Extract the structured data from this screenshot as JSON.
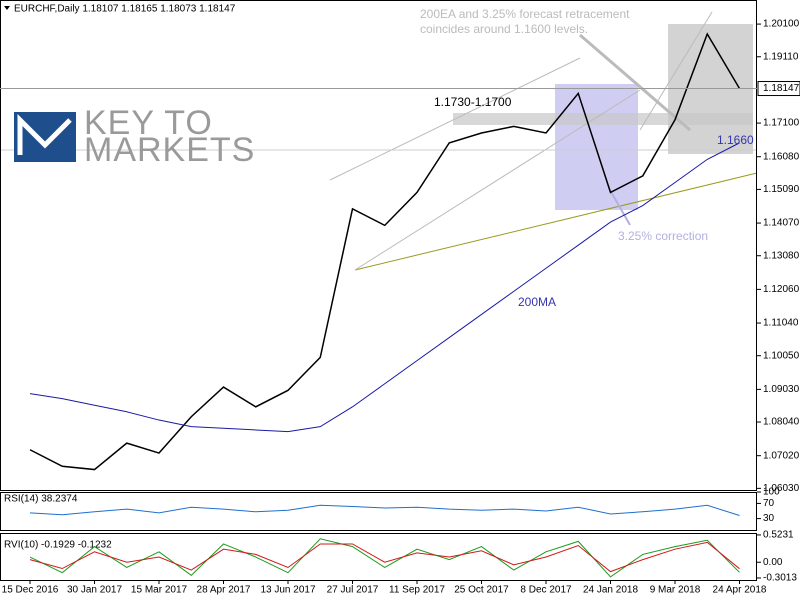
{
  "header": "EURCHF,Daily  1.18107 1.18165 1.18073 1.18147",
  "logo": [
    "KEY TO",
    "MARKETS"
  ],
  "chart_data": [
    {
      "type": "line",
      "title": "EURCHF,Daily",
      "last_price": 1.18147,
      "categories": [
        "15 Dec 2016",
        null,
        "30 Jan 2017",
        null,
        "15 Mar 2017",
        null,
        "28 Apr 2017",
        null,
        "13 Jun 2017",
        null,
        "27 Jul 2017",
        null,
        "11 Sep 2017",
        null,
        "25 Oct 2017",
        null,
        "8 Dec 2017",
        null,
        "24 Jan 2018",
        null,
        "9 Mar 2018",
        null,
        "24 Apr 2018"
      ],
      "series": [
        {
          "name": "EURCHF",
          "color": "#000000",
          "values": [
            1.072,
            1.067,
            1.066,
            1.074,
            1.071,
            1.082,
            1.091,
            1.085,
            1.09,
            1.1,
            1.145,
            1.14,
            1.15,
            1.165,
            1.168,
            1.17,
            1.168,
            1.18,
            1.15,
            1.155,
            1.172,
            1.198,
            1.18147
          ]
        },
        {
          "name": "200MA",
          "color": "#1a1aa6",
          "values": [
            1.089,
            1.0875,
            1.0855,
            1.0835,
            1.081,
            1.079,
            1.0785,
            1.078,
            1.0775,
            1.079,
            1.085,
            1.092,
            1.099,
            1.106,
            1.113,
            1.12,
            1.127,
            1.134,
            1.141,
            1.146,
            1.153,
            1.16,
            1.165
          ]
        }
      ],
      "ylim": [
        1.0598,
        1.2083
      ],
      "yticks": [
        {
          "value": 1.201,
          "label": "1.20100"
        },
        {
          "value": 1.1911,
          "label": "1.19110"
        },
        {
          "value": 1.171,
          "label": "1.17100"
        },
        {
          "value": 1.1608,
          "label": "1.16080"
        },
        {
          "value": 1.1509,
          "label": "1.15090"
        },
        {
          "value": 1.1407,
          "label": "1.14070"
        },
        {
          "value": 1.1308,
          "label": "1.13080"
        },
        {
          "value": 1.1206,
          "label": "1.12060"
        },
        {
          "value": 1.1104,
          "label": "1.11040"
        },
        {
          "value": 1.1005,
          "label": "1.10050"
        },
        {
          "value": 1.0903,
          "label": "1.09030"
        },
        {
          "value": 1.0804,
          "label": "1.08040"
        },
        {
          "value": 1.0702,
          "label": "1.07020"
        },
        {
          "value": 1.0603,
          "label": "1.06030"
        }
      ],
      "annotations": [
        "200EA and  3.25% forecast retracement coincides around 1.1600 levels.",
        "1.1730-1.1700",
        "3.25% correction",
        "200MA",
        "1.1660"
      ]
    },
    {
      "type": "line",
      "title": "RSI(14) 38.2374",
      "series": [
        {
          "name": "RSI(14)",
          "color": "#1e6fd0",
          "values": [
            45,
            40,
            48,
            55,
            45,
            60,
            55,
            48,
            52,
            65,
            62,
            58,
            60,
            55,
            52,
            55,
            50,
            60,
            42,
            48,
            55,
            65,
            38.2374
          ]
        }
      ],
      "ylim": [
        0,
        100
      ],
      "yticks": [
        100,
        70,
        30
      ]
    },
    {
      "type": "line",
      "title": "RVI(10) -0.1929 -0.1232",
      "series": [
        {
          "name": "RVI",
          "color": "#1a9a1a",
          "values": [
            0.1,
            -0.2,
            0.3,
            -0.1,
            0.2,
            -0.25,
            0.35,
            0.1,
            -0.2,
            0.45,
            0.3,
            -0.1,
            0.25,
            0.05,
            0.3,
            -0.15,
            0.2,
            0.4,
            -0.28,
            0.15,
            0.3,
            0.42,
            -0.1929
          ]
        },
        {
          "name": "Signal",
          "color": "#d01818",
          "values": [
            0.05,
            -0.12,
            0.2,
            0,
            0.1,
            -0.15,
            0.25,
            0.15,
            -0.1,
            0.35,
            0.35,
            0,
            0.18,
            0.1,
            0.22,
            -0.05,
            0.1,
            0.32,
            -0.18,
            0.05,
            0.25,
            0.38,
            -0.1232
          ]
        }
      ],
      "ylim": [
        -0.34,
        0.56
      ],
      "yticks": [
        0.5231,
        {
          "value": 0,
          "label": "0.00"
        },
        -0.3013
      ]
    }
  ]
}
